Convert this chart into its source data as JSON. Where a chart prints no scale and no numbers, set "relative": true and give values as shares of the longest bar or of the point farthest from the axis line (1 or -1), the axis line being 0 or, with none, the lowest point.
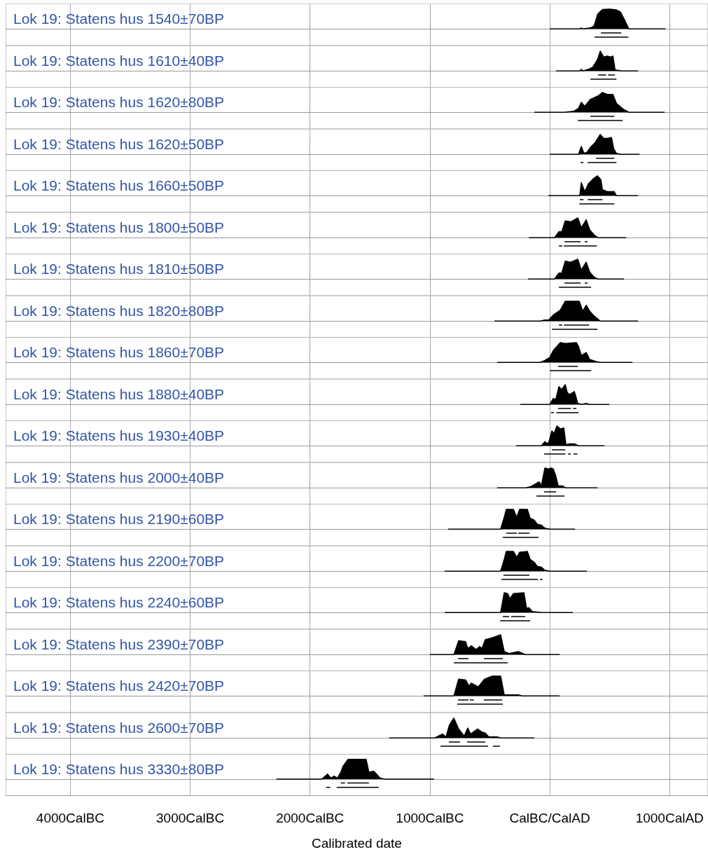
{
  "chart_data": [
    {
      "type": "area",
      "title": "Lok 19: Statens hus 1540±70BP",
      "relative": true,
      "xlim": [
        -4540,
        1320
      ],
      "xticks": [
        {
          "value": -4000,
          "label": null
        },
        {
          "value": -3000,
          "label": null
        },
        {
          "value": -2000,
          "label": null
        },
        {
          "value": -1000,
          "label": null
        },
        {
          "value": 0,
          "label": null
        },
        {
          "value": 1000,
          "label": null
        }
      ],
      "grid": "x",
      "tick_labels": false,
      "series": [
        {
          "color": "#000000",
          "x": [
            0,
            250,
            263,
            275,
            340,
            370,
            400,
            440,
            500,
            560,
            590,
            620,
            660,
            965
          ],
          "values": [
            0,
            0,
            0.05,
            0,
            0.05,
            0.15,
            0.75,
            0.98,
            1,
            0.95,
            0.85,
            0.5,
            0,
            0
          ]
        },
        {
          "type": "line",
          "color": "#000000",
          "x": [
            427,
            597
          ],
          "values": [
            -0.2,
            -0.2
          ]
        },
        {
          "type": "line",
          "color": "#000000",
          "x": [
            374,
            655
          ],
          "values": [
            -0.42,
            -0.42
          ]
        }
      ]
    },
    {
      "type": "area",
      "title": "Lok 19: Statens hus 1610±40BP",
      "relative": true,
      "xlim": [
        -4540,
        1320
      ],
      "xticks": [
        {
          "value": -4000,
          "label": null
        },
        {
          "value": -3000,
          "label": null
        },
        {
          "value": -2000,
          "label": null
        },
        {
          "value": -1000,
          "label": null
        },
        {
          "value": 0,
          "label": null
        },
        {
          "value": 1000,
          "label": null
        }
      ],
      "grid": "x",
      "tick_labels": false,
      "series": [
        {
          "color": "#000000",
          "x": [
            53,
            250,
            263,
            276,
            330,
            360,
            400,
            421,
            450,
            480,
            510,
            527,
            545,
            600,
            737
          ],
          "values": [
            0,
            0,
            0.08,
            0,
            0.1,
            0.2,
            0.6,
            1,
            0.7,
            0.75,
            0.7,
            0.75,
            0.05,
            0,
            0
          ]
        },
        {
          "type": "line",
          "color": "#000000",
          "x": [
            404,
            470
          ],
          "values": [
            -0.2,
            -0.2
          ]
        },
        {
          "type": "line",
          "color": "#000000",
          "x": [
            486,
            544
          ],
          "values": [
            -0.2,
            -0.2
          ]
        },
        {
          "type": "line",
          "color": "#000000",
          "x": [
            339,
            556
          ],
          "values": [
            -0.42,
            -0.42
          ]
        }
      ]
    },
    {
      "type": "area",
      "title": "Lok 19: Statens hus 1620±80BP",
      "relative": true,
      "xlim": [
        -4540,
        1320
      ],
      "xticks": [
        {
          "value": -4000,
          "label": null
        },
        {
          "value": -3000,
          "label": null
        },
        {
          "value": -2000,
          "label": null
        },
        {
          "value": -1000,
          "label": null
        },
        {
          "value": 0,
          "label": null
        },
        {
          "value": 1000,
          "label": null
        }
      ],
      "grid": "x",
      "tick_labels": false,
      "series": [
        {
          "color": "#000000",
          "x": [
            -129,
            120,
            200,
            240,
            263,
            292,
            339,
            410,
            439,
            480,
            527,
            556,
            614,
            660,
            959
          ],
          "values": [
            0,
            0,
            0.05,
            0.2,
            0.5,
            0.3,
            0.65,
            0.85,
            1,
            0.9,
            0.9,
            0.45,
            0.15,
            0,
            0
          ]
        },
        {
          "type": "line",
          "color": "#000000",
          "x": [
            339,
            538
          ],
          "values": [
            -0.2,
            -0.2
          ]
        },
        {
          "type": "line",
          "color": "#000000",
          "x": [
            234,
            608
          ],
          "values": [
            -0.42,
            -0.42
          ]
        }
      ]
    },
    {
      "type": "area",
      "title": "Lok 19: Statens hus 1620±50BP",
      "relative": true,
      "xlim": [
        -4540,
        1320
      ],
      "xticks": [
        {
          "value": -4000,
          "label": null
        },
        {
          "value": -3000,
          "label": null
        },
        {
          "value": -2000,
          "label": null
        },
        {
          "value": -1000,
          "label": null
        },
        {
          "value": 0,
          "label": null
        },
        {
          "value": 1000,
          "label": null
        }
      ],
      "grid": "x",
      "tick_labels": false,
      "series": [
        {
          "color": "#000000",
          "x": [
            0,
            240,
            263,
            285,
            310,
            339,
            380,
            421,
            450,
            480,
            515,
            533,
            555,
            590,
            749
          ],
          "values": [
            0,
            0,
            0.4,
            0.05,
            0.1,
            0.35,
            0.6,
            1,
            0.8,
            0.8,
            0.85,
            0.3,
            0.05,
            0,
            0
          ]
        },
        {
          "type": "line",
          "color": "#000000",
          "x": [
            386,
            538
          ],
          "values": [
            -0.2,
            -0.2
          ]
        },
        {
          "type": "line",
          "color": "#000000",
          "x": [
            257,
            281
          ],
          "values": [
            -0.42,
            -0.42
          ]
        },
        {
          "type": "line",
          "color": "#000000",
          "x": [
            316,
            556
          ],
          "values": [
            -0.42,
            -0.42
          ]
        }
      ]
    },
    {
      "type": "area",
      "title": "Lok 19: Statens hus 1660±50BP",
      "relative": true,
      "xlim": [
        -4540,
        1320
      ],
      "xticks": [
        {
          "value": -4000,
          "label": null
        },
        {
          "value": -3000,
          "label": null
        },
        {
          "value": -2000,
          "label": null
        },
        {
          "value": -1000,
          "label": null
        },
        {
          "value": 0,
          "label": null
        },
        {
          "value": 1000,
          "label": null
        }
      ],
      "grid": "x",
      "tick_labels": false,
      "series": [
        {
          "color": "#000000",
          "x": [
            -12,
            230,
            250,
            263,
            292,
            322,
            363,
            398,
            427,
            439,
            480,
            538,
            555,
            737
          ],
          "values": [
            0,
            0,
            0,
            0.65,
            0.2,
            0.6,
            0.85,
            1,
            0.8,
            0.3,
            0.2,
            0.2,
            0,
            0
          ]
        },
        {
          "type": "line",
          "color": "#000000",
          "x": [
            251,
            281
          ],
          "values": [
            -0.2,
            -0.2
          ]
        },
        {
          "type": "line",
          "color": "#000000",
          "x": [
            316,
            439
          ],
          "values": [
            -0.2,
            -0.2
          ]
        },
        {
          "type": "line",
          "color": "#000000",
          "x": [
            246,
            538
          ],
          "values": [
            -0.42,
            -0.42
          ]
        }
      ]
    },
    {
      "type": "area",
      "title": "Lok 19: Statens hus 1800±50BP",
      "relative": true,
      "xlim": [
        -4540,
        1320
      ],
      "xticks": [
        {
          "value": -4000,
          "label": null
        },
        {
          "value": -3000,
          "label": null
        },
        {
          "value": -2000,
          "label": null
        },
        {
          "value": -1000,
          "label": null
        },
        {
          "value": 0,
          "label": null
        },
        {
          "value": 1000,
          "label": null
        }
      ],
      "grid": "x",
      "tick_labels": false,
      "series": [
        {
          "color": "#000000",
          "x": [
            -175,
            40,
            76,
            100,
            129,
            175,
            234,
            263,
            304,
            333,
            369,
            400,
            638
          ],
          "values": [
            0,
            0,
            0.3,
            0.3,
            0.85,
            0.8,
            1,
            0.5,
            0.9,
            0.4,
            0.15,
            0,
            0
          ]
        },
        {
          "type": "line",
          "color": "#000000",
          "x": [
            123,
            257
          ],
          "values": [
            -0.2,
            -0.2
          ]
        },
        {
          "type": "line",
          "color": "#000000",
          "x": [
            292,
            316
          ],
          "values": [
            -0.2,
            -0.2
          ]
        },
        {
          "type": "line",
          "color": "#000000",
          "x": [
            76,
            105
          ],
          "values": [
            -0.42,
            -0.42
          ]
        },
        {
          "type": "line",
          "color": "#000000",
          "x": [
            117,
            392
          ],
          "values": [
            -0.42,
            -0.42
          ]
        }
      ]
    },
    {
      "type": "area",
      "title": "Lok 19: Statens hus 1810±50BP",
      "relative": true,
      "xlim": [
        -4540,
        1320
      ],
      "xticks": [
        {
          "value": -4000,
          "label": null
        },
        {
          "value": -3000,
          "label": null
        },
        {
          "value": -2000,
          "label": null
        },
        {
          "value": -1000,
          "label": null
        },
        {
          "value": 0,
          "label": null
        },
        {
          "value": 1000,
          "label": null
        }
      ],
      "grid": "x",
      "tick_labels": false,
      "series": [
        {
          "color": "#000000",
          "x": [
            -181,
            40,
            76,
            100,
            129,
            175,
            234,
            263,
            304,
            333,
            369,
            400,
            620
          ],
          "values": [
            0,
            0,
            0.3,
            0.3,
            0.9,
            0.85,
            1,
            0.45,
            0.85,
            0.35,
            0.1,
            0,
            0
          ]
        },
        {
          "type": "line",
          "color": "#000000",
          "x": [
            123,
            257
          ],
          "values": [
            -0.2,
            -0.2
          ]
        },
        {
          "type": "line",
          "color": "#000000",
          "x": [
            292,
            316
          ],
          "values": [
            -0.2,
            -0.2
          ]
        },
        {
          "type": "line",
          "color": "#000000",
          "x": [
            76,
            345
          ],
          "values": [
            -0.42,
            -0.42
          ]
        }
      ]
    },
    {
      "type": "area",
      "title": "Lok 19: Statens hus 1820±80BP",
      "relative": true,
      "xlim": [
        -4540,
        1320
      ],
      "xticks": [
        {
          "value": -4000,
          "label": null
        },
        {
          "value": -3000,
          "label": null
        },
        {
          "value": -2000,
          "label": null
        },
        {
          "value": -1000,
          "label": null
        },
        {
          "value": 0,
          "label": null
        },
        {
          "value": 1000,
          "label": null
        }
      ],
      "grid": "x",
      "tick_labels": false,
      "series": [
        {
          "color": "#000000",
          "x": [
            -462,
            -80,
            -41,
            -10,
            29,
            88,
            129,
            246,
            275,
            304,
            333,
            363,
            421,
            460,
            737
          ],
          "values": [
            0,
            0,
            0.05,
            0.05,
            0.3,
            0.55,
            1,
            1,
            0.5,
            0.8,
            0.5,
            0.3,
            0,
            0,
            0
          ]
        },
        {
          "type": "line",
          "color": "#000000",
          "x": [
            76,
            105
          ],
          "values": [
            -0.2,
            -0.2
          ]
        },
        {
          "type": "line",
          "color": "#000000",
          "x": [
            117,
            328
          ],
          "values": [
            -0.2,
            -0.2
          ]
        },
        {
          "type": "line",
          "color": "#000000",
          "x": [
            18,
            398
          ],
          "values": [
            -0.42,
            -0.42
          ]
        }
      ]
    },
    {
      "type": "area",
      "title": "Lok 19: Statens hus 1860±70BP",
      "relative": true,
      "xlim": [
        -4540,
        1320
      ],
      "xticks": [
        {
          "value": -4000,
          "label": null
        },
        {
          "value": -3000,
          "label": null
        },
        {
          "value": -2000,
          "label": null
        },
        {
          "value": -1000,
          "label": null
        },
        {
          "value": 0,
          "label": null
        },
        {
          "value": 1000,
          "label": null
        }
      ],
      "grid": "x",
      "tick_labels": false,
      "series": [
        {
          "color": "#000000",
          "x": [
            -439,
            -80,
            -41,
            0,
            29,
            88,
            129,
            222,
            240,
            263,
            304,
            333,
            380,
            420,
            690
          ],
          "values": [
            0,
            0,
            0.1,
            0.25,
            0.6,
            1,
            0.95,
            1,
            0.8,
            0.35,
            0.5,
            0.15,
            0.05,
            0,
            0
          ]
        },
        {
          "type": "line",
          "color": "#000000",
          "x": [
            70,
            234
          ],
          "values": [
            -0.2,
            -0.2
          ]
        },
        {
          "type": "line",
          "color": "#000000",
          "x": [
            0,
            345
          ],
          "values": [
            -0.42,
            -0.42
          ]
        }
      ]
    },
    {
      "type": "area",
      "title": "Lok 19: Statens hus 1880±40BP",
      "relative": true,
      "xlim": [
        -4540,
        1320
      ],
      "xticks": [
        {
          "value": -4000,
          "label": null
        },
        {
          "value": -3000,
          "label": null
        },
        {
          "value": -2000,
          "label": null
        },
        {
          "value": -1000,
          "label": null
        },
        {
          "value": 0,
          "label": null
        },
        {
          "value": 1000,
          "label": null
        }
      ],
      "grid": "x",
      "tick_labels": false,
      "series": [
        {
          "color": "#000000",
          "x": [
            -246,
            0,
            29,
            50,
            76,
            99,
            129,
            146,
            164,
            205,
            234,
            270,
            304,
            330,
            497
          ],
          "values": [
            0,
            0,
            0.3,
            0.25,
            0.9,
            0.75,
            1,
            0.6,
            0.5,
            0.65,
            0.05,
            0,
            0.05,
            0,
            0
          ]
        },
        {
          "type": "line",
          "color": "#000000",
          "x": [
            70,
            176
          ],
          "values": [
            -0.2,
            -0.2
          ]
        },
        {
          "type": "line",
          "color": "#000000",
          "x": [
            194,
            222
          ],
          "values": [
            -0.2,
            -0.2
          ]
        },
        {
          "type": "line",
          "color": "#000000",
          "x": [
            10,
            35
          ],
          "values": [
            -0.42,
            -0.42
          ]
        },
        {
          "type": "line",
          "color": "#000000",
          "x": [
            55,
            240
          ],
          "values": [
            -0.42,
            -0.42
          ]
        }
      ]
    },
    {
      "type": "area",
      "title": "Lok 19: Statens hus 1930±40BP",
      "relative": true,
      "xlim": [
        -4540,
        1320
      ],
      "xticks": [
        {
          "value": -4000,
          "label": null
        },
        {
          "value": -3000,
          "label": null
        },
        {
          "value": -2000,
          "label": null
        },
        {
          "value": -1000,
          "label": null
        },
        {
          "value": 0,
          "label": null
        },
        {
          "value": 1000,
          "label": null
        }
      ],
      "grid": "x",
      "tick_labels": false,
      "series": [
        {
          "color": "#000000",
          "x": [
            -281,
            -70,
            -41,
            -12,
            18,
            35,
            59,
            88,
            117,
            135,
            164,
            205,
            240,
            456
          ],
          "values": [
            0,
            0,
            0.2,
            0.1,
            0.75,
            0.6,
            1,
            0.85,
            0.9,
            0.05,
            0.1,
            0.1,
            0,
            0
          ]
        },
        {
          "type": "line",
          "color": "#000000",
          "x": [
            18,
            129
          ],
          "values": [
            -0.2,
            -0.2
          ]
        },
        {
          "type": "line",
          "color": "#000000",
          "x": [
            -47,
            130
          ],
          "values": [
            -0.42,
            -0.42
          ]
        },
        {
          "type": "line",
          "color": "#000000",
          "x": [
            152,
            176
          ],
          "values": [
            -0.42,
            -0.42
          ]
        },
        {
          "type": "line",
          "color": "#000000",
          "x": [
            198,
            230
          ],
          "values": [
            -0.42,
            -0.42
          ]
        }
      ]
    },
    {
      "type": "area",
      "title": "Lok 19: Statens hus 2000±40BP",
      "relative": true,
      "xlim": [
        -4540,
        1320
      ],
      "xticks": [
        {
          "value": -4000,
          "label": null
        },
        {
          "value": -3000,
          "label": null
        },
        {
          "value": -2000,
          "label": null
        },
        {
          "value": -1000,
          "label": null
        },
        {
          "value": 0,
          "label": null
        },
        {
          "value": 1000,
          "label": null
        }
      ],
      "grid": "x",
      "tick_labels": false,
      "series": [
        {
          "color": "#000000",
          "x": [
            -439,
            -200,
            -164,
            -88,
            -70,
            -41,
            -12,
            12,
            29,
            50,
            70,
            105,
            130,
            398
          ],
          "values": [
            0,
            0,
            0.05,
            0.3,
            0.1,
            1,
            0.95,
            1,
            0.95,
            0.6,
            0.1,
            0.1,
            0,
            0
          ]
        },
        {
          "type": "line",
          "color": "#000000",
          "x": [
            -47,
            53
          ],
          "values": [
            -0.2,
            -0.2
          ]
        },
        {
          "type": "line",
          "color": "#000000",
          "x": [
            -111,
            123
          ],
          "values": [
            -0.42,
            -0.42
          ]
        }
      ]
    },
    {
      "type": "area",
      "title": "Lok 19: Statens hus 2190±60BP",
      "relative": true,
      "xlim": [
        -4540,
        1320
      ],
      "xticks": [
        {
          "value": -4000,
          "label": null
        },
        {
          "value": -3000,
          "label": null
        },
        {
          "value": -2000,
          "label": null
        },
        {
          "value": -1000,
          "label": null
        },
        {
          "value": 0,
          "label": null
        },
        {
          "value": 1000,
          "label": null
        }
      ],
      "grid": "x",
      "tick_labels": false,
      "series": [
        {
          "color": "#000000",
          "x": [
            -848,
            -410,
            -380,
            -363,
            -304,
            -275,
            -252,
            -187,
            -164,
            -129,
            -105,
            -70,
            -41,
            0,
            211
          ],
          "values": [
            0,
            0,
            0.6,
            1,
            1,
            0.6,
            1,
            1,
            0.55,
            0.45,
            0.25,
            0.2,
            0.05,
            0,
            0
          ]
        },
        {
          "type": "line",
          "color": "#000000",
          "x": [
            -363,
            -275
          ],
          "values": [
            -0.2,
            -0.2
          ]
        },
        {
          "type": "line",
          "color": "#000000",
          "x": [
            -263,
            -170
          ],
          "values": [
            -0.2,
            -0.2
          ]
        },
        {
          "type": "line",
          "color": "#000000",
          "x": [
            -392,
            -94
          ],
          "values": [
            -0.42,
            -0.42
          ]
        }
      ]
    },
    {
      "type": "area",
      "title": "Lok 19: Statens hus 2200±70BP",
      "relative": true,
      "xlim": [
        -4540,
        1320
      ],
      "xticks": [
        {
          "value": -4000,
          "label": null
        },
        {
          "value": -3000,
          "label": null
        },
        {
          "value": -2000,
          "label": null
        },
        {
          "value": -1000,
          "label": null
        },
        {
          "value": 0,
          "label": null
        },
        {
          "value": 1000,
          "label": null
        }
      ],
      "grid": "x",
      "tick_labels": false,
      "series": [
        {
          "color": "#000000",
          "x": [
            -877,
            -410,
            -380,
            -363,
            -304,
            -275,
            -252,
            -187,
            -164,
            -129,
            -105,
            -70,
            -41,
            0,
            310
          ],
          "values": [
            0,
            0,
            0.6,
            1,
            1,
            0.7,
            0.95,
            1,
            0.6,
            0.45,
            0.25,
            0.2,
            0.05,
            0,
            0
          ]
        },
        {
          "type": "line",
          "color": "#000000",
          "x": [
            -386,
            -170
          ],
          "values": [
            -0.2,
            -0.2
          ]
        },
        {
          "type": "line",
          "color": "#000000",
          "x": [
            -404,
            -98
          ],
          "values": [
            -0.42,
            -0.42
          ]
        },
        {
          "type": "line",
          "color": "#000000",
          "x": [
            -82,
            -60
          ],
          "values": [
            -0.42,
            -0.42
          ]
        }
      ]
    },
    {
      "type": "area",
      "title": "Lok 19: Statens hus 2240±60BP",
      "relative": true,
      "xlim": [
        -4540,
        1320
      ],
      "xticks": [
        {
          "value": -4000,
          "label": null
        },
        {
          "value": -3000,
          "label": null
        },
        {
          "value": -2000,
          "label": null
        },
        {
          "value": -1000,
          "label": null
        },
        {
          "value": 0,
          "label": null
        },
        {
          "value": 1000,
          "label": null
        }
      ],
      "grid": "x",
      "tick_labels": false,
      "series": [
        {
          "color": "#000000",
          "x": [
            -877,
            -410,
            -380,
            -351,
            -333,
            -304,
            -216,
            -193,
            -175,
            -146,
            -70,
            193
          ],
          "values": [
            0,
            0,
            1,
            0.95,
            0.7,
            0.95,
            1,
            0.2,
            0.25,
            0.05,
            0,
            0
          ]
        },
        {
          "type": "line",
          "color": "#000000",
          "x": [
            -392,
            -339
          ],
          "values": [
            -0.2,
            -0.2
          ]
        },
        {
          "type": "line",
          "color": "#000000",
          "x": [
            -322,
            -205
          ],
          "values": [
            -0.2,
            -0.2
          ]
        },
        {
          "type": "line",
          "color": "#000000",
          "x": [
            -415,
            -164
          ],
          "values": [
            -0.42,
            -0.42
          ]
        }
      ]
    },
    {
      "type": "area",
      "title": "Lok 19: Statens hus 2390±70BP",
      "relative": true,
      "xlim": [
        -4540,
        1320
      ],
      "xticks": [
        {
          "value": -4000,
          "label": null
        },
        {
          "value": -3000,
          "label": null
        },
        {
          "value": -2000,
          "label": null
        },
        {
          "value": -1000,
          "label": null
        },
        {
          "value": 0,
          "label": null
        },
        {
          "value": 1000,
          "label": null
        }
      ],
      "grid": "x",
      "tick_labels": false,
      "series": [
        {
          "color": "#000000",
          "x": [
            -1000,
            -800,
            -760,
            -702,
            -684,
            -655,
            -614,
            -585,
            -567,
            -538,
            -480,
            -410,
            -380,
            -339,
            -263,
            -205,
            82
          ],
          "values": [
            0,
            0,
            0.7,
            0.65,
            0.3,
            0.45,
            0.25,
            0.4,
            0.3,
            0.75,
            0.85,
            1,
            0.15,
            0.05,
            0.15,
            0,
            0
          ]
        },
        {
          "type": "line",
          "color": "#000000",
          "x": [
            -766,
            -679
          ],
          "values": [
            -0.2,
            -0.2
          ]
        },
        {
          "type": "line",
          "color": "#000000",
          "x": [
            -550,
            -392
          ],
          "values": [
            -0.2,
            -0.2
          ]
        },
        {
          "type": "line",
          "color": "#000000",
          "x": [
            -801,
            -351
          ],
          "values": [
            -0.42,
            -0.42
          ]
        }
      ]
    },
    {
      "type": "area",
      "title": "Lok 19: Statens hus 2420±70BP",
      "relative": true,
      "xlim": [
        -4540,
        1320
      ],
      "xticks": [
        {
          "value": -4000,
          "label": null
        },
        {
          "value": -3000,
          "label": null
        },
        {
          "value": -2000,
          "label": null
        },
        {
          "value": -1000,
          "label": null
        },
        {
          "value": 0,
          "label": null
        },
        {
          "value": 1000,
          "label": null
        }
      ],
      "grid": "x",
      "tick_labels": false,
      "series": [
        {
          "color": "#000000",
          "x": [
            -1053,
            -800,
            -760,
            -702,
            -673,
            -655,
            -597,
            -544,
            -480,
            -410,
            -380,
            -263,
            -230,
            82
          ],
          "values": [
            0,
            0,
            0.85,
            0.8,
            0.5,
            0.65,
            0.45,
            0.85,
            1,
            1,
            0.05,
            0.05,
            0,
            0
          ]
        },
        {
          "type": "line",
          "color": "#000000",
          "x": [
            -766,
            -679
          ],
          "values": [
            -0.2,
            -0.2
          ]
        },
        {
          "type": "line",
          "color": "#000000",
          "x": [
            -666,
            -634
          ],
          "values": [
            -0.2,
            -0.2
          ]
        },
        {
          "type": "line",
          "color": "#000000",
          "x": [
            -550,
            -398
          ],
          "values": [
            -0.2,
            -0.2
          ]
        },
        {
          "type": "line",
          "color": "#000000",
          "x": [
            -772,
            -392
          ],
          "values": [
            -0.42,
            -0.42
          ]
        }
      ]
    },
    {
      "type": "area",
      "title": "Lok 19: Statens hus 2600±70BP",
      "relative": true,
      "xlim": [
        -4540,
        1320
      ],
      "xticks": [
        {
          "value": -4000,
          "label": null
        },
        {
          "value": -3000,
          "label": null
        },
        {
          "value": -2000,
          "label": null
        },
        {
          "value": -1000,
          "label": null
        },
        {
          "value": 0,
          "label": null
        },
        {
          "value": 1000,
          "label": null
        }
      ],
      "grid": "x",
      "tick_labels": false,
      "series": [
        {
          "color": "#000000",
          "x": [
            -1340,
            -960,
            -895,
            -866,
            -837,
            -801,
            -760,
            -714,
            -684,
            -661,
            -603,
            -567,
            -538,
            -509,
            -439,
            -410,
            -129
          ],
          "values": [
            0,
            0,
            0.2,
            0.05,
            0.65,
            1,
            0.45,
            0.1,
            0.5,
            0.2,
            0.45,
            0.3,
            0.25,
            0.05,
            0.05,
            0,
            0
          ]
        },
        {
          "type": "line",
          "color": "#000000",
          "x": [
            -842,
            -749
          ],
          "values": [
            -0.2,
            -0.2
          ]
        },
        {
          "type": "line",
          "color": "#000000",
          "x": [
            -690,
            -538
          ],
          "values": [
            -0.2,
            -0.2
          ]
        },
        {
          "type": "line",
          "color": "#000000",
          "x": [
            -912,
            -515
          ],
          "values": [
            -0.42,
            -0.42
          ]
        },
        {
          "type": "line",
          "color": "#000000",
          "x": [
            -474,
            -415
          ],
          "values": [
            -0.42,
            -0.42
          ]
        }
      ]
    },
    {
      "type": "area",
      "title": "Lok 19: Statens hus 3330±80BP",
      "relative": true,
      "xlim": [
        -4540,
        1320
      ],
      "xticks": [
        {
          "value": -4000,
          "label": "4000CalBC"
        },
        {
          "value": -3000,
          "label": "3000CalBC"
        },
        {
          "value": -2000,
          "label": "2000CalBC"
        },
        {
          "value": -1000,
          "label": "1000CalBC"
        },
        {
          "value": 0,
          "label": "CalBC/CalAD"
        },
        {
          "value": 1000,
          "label": "1000CalAD"
        }
      ],
      "grid": "x",
      "tick_labels": "x",
      "xlabel": "Calibrated date",
      "series": [
        {
          "color": "#000000",
          "x": [
            -2281,
            -1900,
            -1854,
            -1825,
            -1801,
            -1772,
            -1743,
            -1725,
            -1684,
            -1532,
            -1509,
            -1468,
            -1415,
            -1380,
            -965
          ],
          "values": [
            0,
            0,
            0.25,
            0.05,
            0.15,
            0.05,
            0.35,
            0.65,
            1,
            1,
            0.35,
            0.4,
            0.05,
            0,
            0
          ]
        },
        {
          "type": "line",
          "color": "#000000",
          "x": [
            -1743,
            -1708
          ],
          "values": [
            -0.2,
            -0.2
          ]
        },
        {
          "type": "line",
          "color": "#000000",
          "x": [
            -1690,
            -1509
          ],
          "values": [
            -0.2,
            -0.2
          ]
        },
        {
          "type": "line",
          "color": "#000000",
          "x": [
            -1866,
            -1831
          ],
          "values": [
            -0.42,
            -0.42
          ]
        },
        {
          "type": "line",
          "color": "#000000",
          "x": [
            -1778,
            -1427
          ],
          "values": [
            -0.42,
            -0.42
          ]
        }
      ]
    }
  ]
}
